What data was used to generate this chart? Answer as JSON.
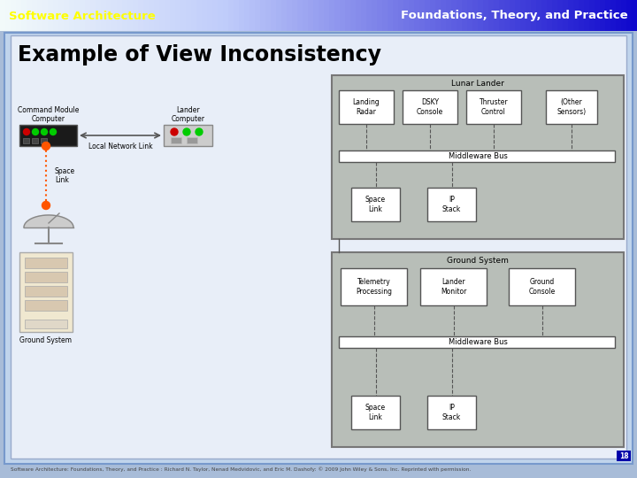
{
  "header_left": "Software Architecture",
  "header_right": "Foundations, Theory, and Practice",
  "title": "Example of View Inconsistency",
  "footer": "Software Architecture: Foundations, Theory, and Practice : Richard N. Taylor, Nenad Medvidovic, and Eric M. Dashofy: © 2009 John Wiley & Sons, Inc. Reprinted with permission.",
  "page_number": "18",
  "slide_bg_color": "#c8d8ee",
  "slide_border_color": "#6688bb",
  "header_left_color": "#ffff00",
  "header_right_color": "#ffffff",
  "lunar_lander_label": "Lunar Lander",
  "lunar_boxes": [
    "Landing\nRadar",
    "DSKY\nConsole",
    "Thruster\nControl",
    "(Other\nSensors)"
  ],
  "middleware_bus_1": "Middleware Bus",
  "space_link_1": "Space\nLink",
  "ip_stack_1": "IP\nStack",
  "ground_system_label": "Ground System",
  "ground_boxes": [
    "Telemetry\nProcessing",
    "Lander\nMonitor",
    "Ground\nConsole"
  ],
  "middleware_bus_2": "Middleware Bus",
  "space_link_2": "Space\nLink",
  "ip_stack_2": "IP\nStack",
  "cmd_module_label": "Command Module\nComputer",
  "lander_computer_label": "Lander\nComputer",
  "local_network_label": "Local Network Link",
  "space_link_label": "Space\nLink",
  "ground_system_left_label": "Ground System"
}
